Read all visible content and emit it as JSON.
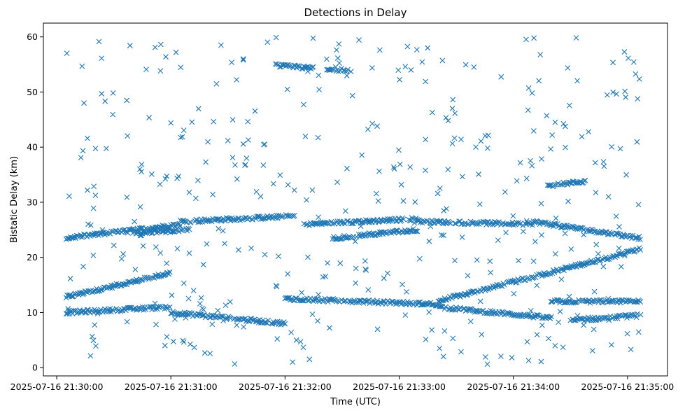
{
  "chart_data": {
    "type": "scatter",
    "title": "Detections in Delay",
    "xlabel": "Time (UTC)",
    "ylabel": "Bistatic Delay (km)",
    "x_ticks": [
      "2025-07-16 21:30:00",
      "2025-07-16 21:31:00",
      "2025-07-16 21:32:00",
      "2025-07-16 21:33:00",
      "2025-07-16 21:34:00",
      "2025-07-16 21:35:00"
    ],
    "y_ticks": [
      0,
      10,
      20,
      30,
      40,
      50,
      60
    ],
    "xlim": [
      "2025-07-16 21:29:53",
      "2025-07-16 21:35:21"
    ],
    "ylim": [
      -1.5,
      62.5
    ],
    "marker": "x",
    "color": "#1f77b4",
    "grid": false,
    "legend": "none",
    "series": [
      {
        "time_start": "2025-07-16 21:30:05",
        "time_end": "2025-07-16 21:35:07",
        "tracks": [
          {
            "from": [
              "21:30:05",
              12.8
            ],
            "to": [
              "21:31:00",
              17.2
            ]
          },
          {
            "from": [
              "21:33:20",
              12.0
            ],
            "to": [
              "21:35:07",
              21.5
            ]
          },
          {
            "from": [
              "21:30:05",
              23.5
            ],
            "to": [
              "21:31:05",
              26.0
            ]
          },
          {
            "from": [
              "21:31:05",
              26.5
            ],
            "to": [
              "21:32:05",
              27.5
            ]
          },
          {
            "from": [
              "21:32:10",
              26.0
            ],
            "to": [
              "21:33:10",
              27.0
            ]
          },
          {
            "from": [
              "21:33:10",
              26.5
            ],
            "to": [
              "21:34:10",
              26.0
            ]
          },
          {
            "from": [
              "21:34:10",
              26.5
            ],
            "to": [
              "21:35:07",
              23.5
            ]
          },
          {
            "from": [
              "21:30:05",
              10.0
            ],
            "to": [
              "21:31:00",
              11.0
            ]
          },
          {
            "from": [
              "21:31:00",
              10.0
            ],
            "to": [
              "21:32:00",
              8.0
            ]
          },
          {
            "from": [
              "21:32:00",
              12.5
            ],
            "to": [
              "21:33:20",
              11.5
            ]
          },
          {
            "from": [
              "21:33:20",
              11.0
            ],
            "to": [
              "21:34:20",
              9.0
            ]
          },
          {
            "from": [
              "21:34:20",
              12.0
            ],
            "to": [
              "21:35:07",
              12.0
            ]
          },
          {
            "from": [
              "21:34:30",
              8.5
            ],
            "to": [
              "21:35:07",
              9.5
            ]
          },
          {
            "from": [
              "21:31:55",
              54.8
            ],
            "to": [
              "21:32:15",
              54.3
            ]
          },
          {
            "from": [
              "21:32:22",
              54.0
            ],
            "to": [
              "21:32:35",
              54.0
            ]
          },
          {
            "from": [
              "21:34:18",
              33.0
            ],
            "to": [
              "21:34:38",
              33.8
            ]
          },
          {
            "from": [
              "21:30:40",
              24.5
            ],
            "to": [
              "21:31:10",
              25.0
            ]
          },
          {
            "from": [
              "21:32:25",
              23.5
            ],
            "to": [
              "21:33:10",
              25.0
            ]
          }
        ],
        "scatter_points": 400
      }
    ]
  }
}
